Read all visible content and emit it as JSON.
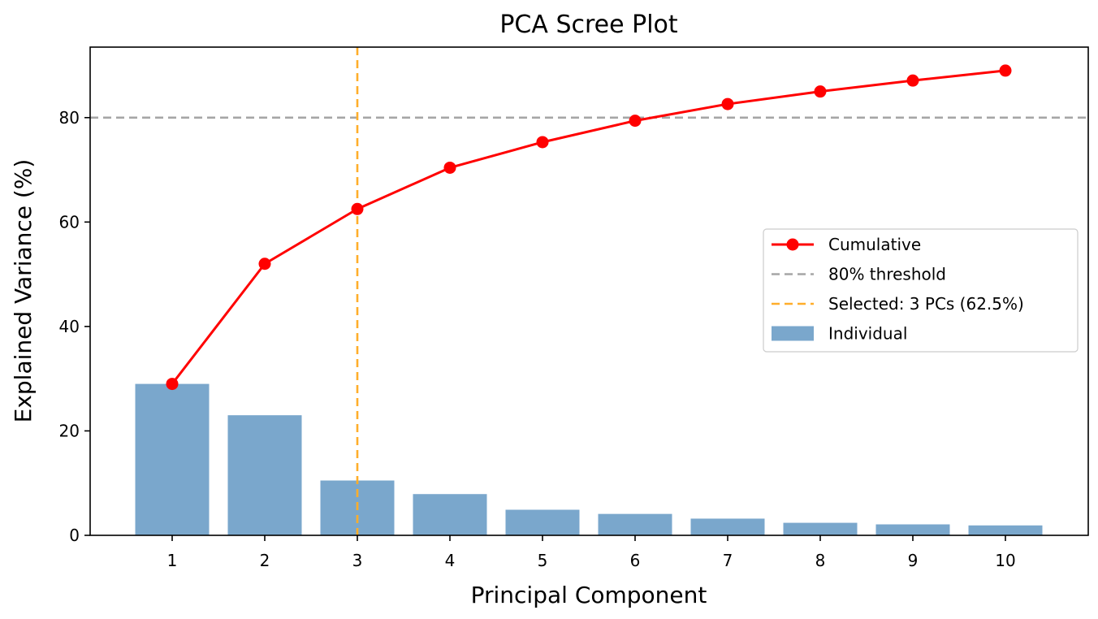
{
  "chart_data": {
    "type": "bar",
    "title": "PCA Scree Plot",
    "xlabel": "Principal Component",
    "ylabel": "Explained Variance (%)",
    "categories": [
      "1",
      "2",
      "3",
      "4",
      "5",
      "6",
      "7",
      "8",
      "9",
      "10"
    ],
    "ylim": [
      0,
      93.5
    ],
    "yticks": [
      0,
      20,
      40,
      60,
      80
    ],
    "series": [
      {
        "name": "Individual",
        "type": "bar",
        "color": "#7aa7cc",
        "values": [
          29.0,
          23.0,
          10.5,
          7.9,
          4.9,
          4.1,
          3.2,
          2.4,
          2.1,
          1.9
        ]
      },
      {
        "name": "Cumulative",
        "type": "line",
        "color": "#ff0000",
        "values": [
          29.0,
          52.0,
          62.5,
          70.4,
          75.3,
          79.4,
          82.6,
          85.0,
          87.1,
          89.0
        ]
      }
    ],
    "reference_lines": [
      {
        "name": "80% threshold",
        "orientation": "horizontal",
        "value": 80,
        "color": "#a6a6a6",
        "style": "dashed"
      },
      {
        "name": "Selected: 3 PCs (62.5%)",
        "orientation": "vertical",
        "value": 3,
        "color": "#ffae2a",
        "style": "dashed"
      }
    ],
    "grid": false,
    "legend": {
      "position": "center-right",
      "entries": [
        "Cumulative",
        "80% threshold",
        "Selected: 3 PCs (62.5%)",
        "Individual"
      ]
    }
  }
}
